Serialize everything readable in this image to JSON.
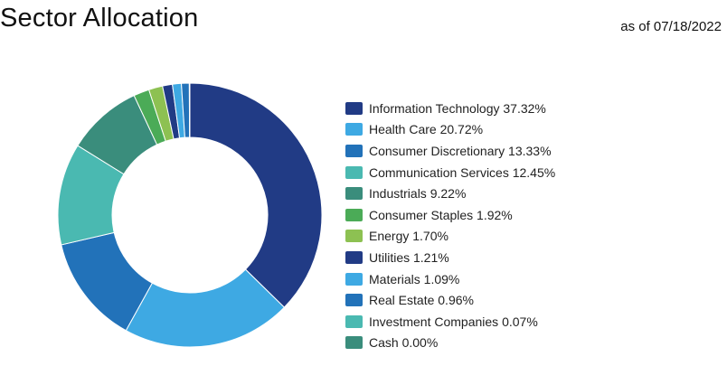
{
  "header": {
    "title": "Sector Allocation",
    "date": "as of 07/18/2022"
  },
  "chart_data": {
    "type": "pie",
    "title": "Sector Allocation",
    "categories": [
      "Information Technology",
      "Health Care",
      "Consumer Discretionary",
      "Communication Services",
      "Industrials",
      "Consumer Staples",
      "Energy",
      "Utilities",
      "Materials",
      "Real Estate",
      "Investment Companies",
      "Cash"
    ],
    "values": [
      37.32,
      20.72,
      13.33,
      12.45,
      9.22,
      1.92,
      1.7,
      1.21,
      1.09,
      0.96,
      0.07,
      0.0
    ],
    "legend_labels": [
      "Information Technology 37.32%",
      "Health Care 20.72%",
      "Consumer Discretionary 13.33%",
      "Communication Services 12.45%",
      "Industrials 9.22%",
      "Consumer Staples 1.92%",
      "Energy 1.70%",
      "Utilities 1.21%",
      "Materials 1.09%",
      "Real Estate 0.96%",
      "Investment Companies 0.07%",
      "Cash 0.00%"
    ],
    "colors": [
      "#213b85",
      "#3ea9e3",
      "#2272b9",
      "#4ab9b1",
      "#3a8d7c",
      "#4bab57",
      "#8dc152",
      "#213b85",
      "#3ea9e3",
      "#2272b9",
      "#4ab9b1",
      "#3a8d7c"
    ],
    "legend_position": "right",
    "hole": "donut"
  }
}
